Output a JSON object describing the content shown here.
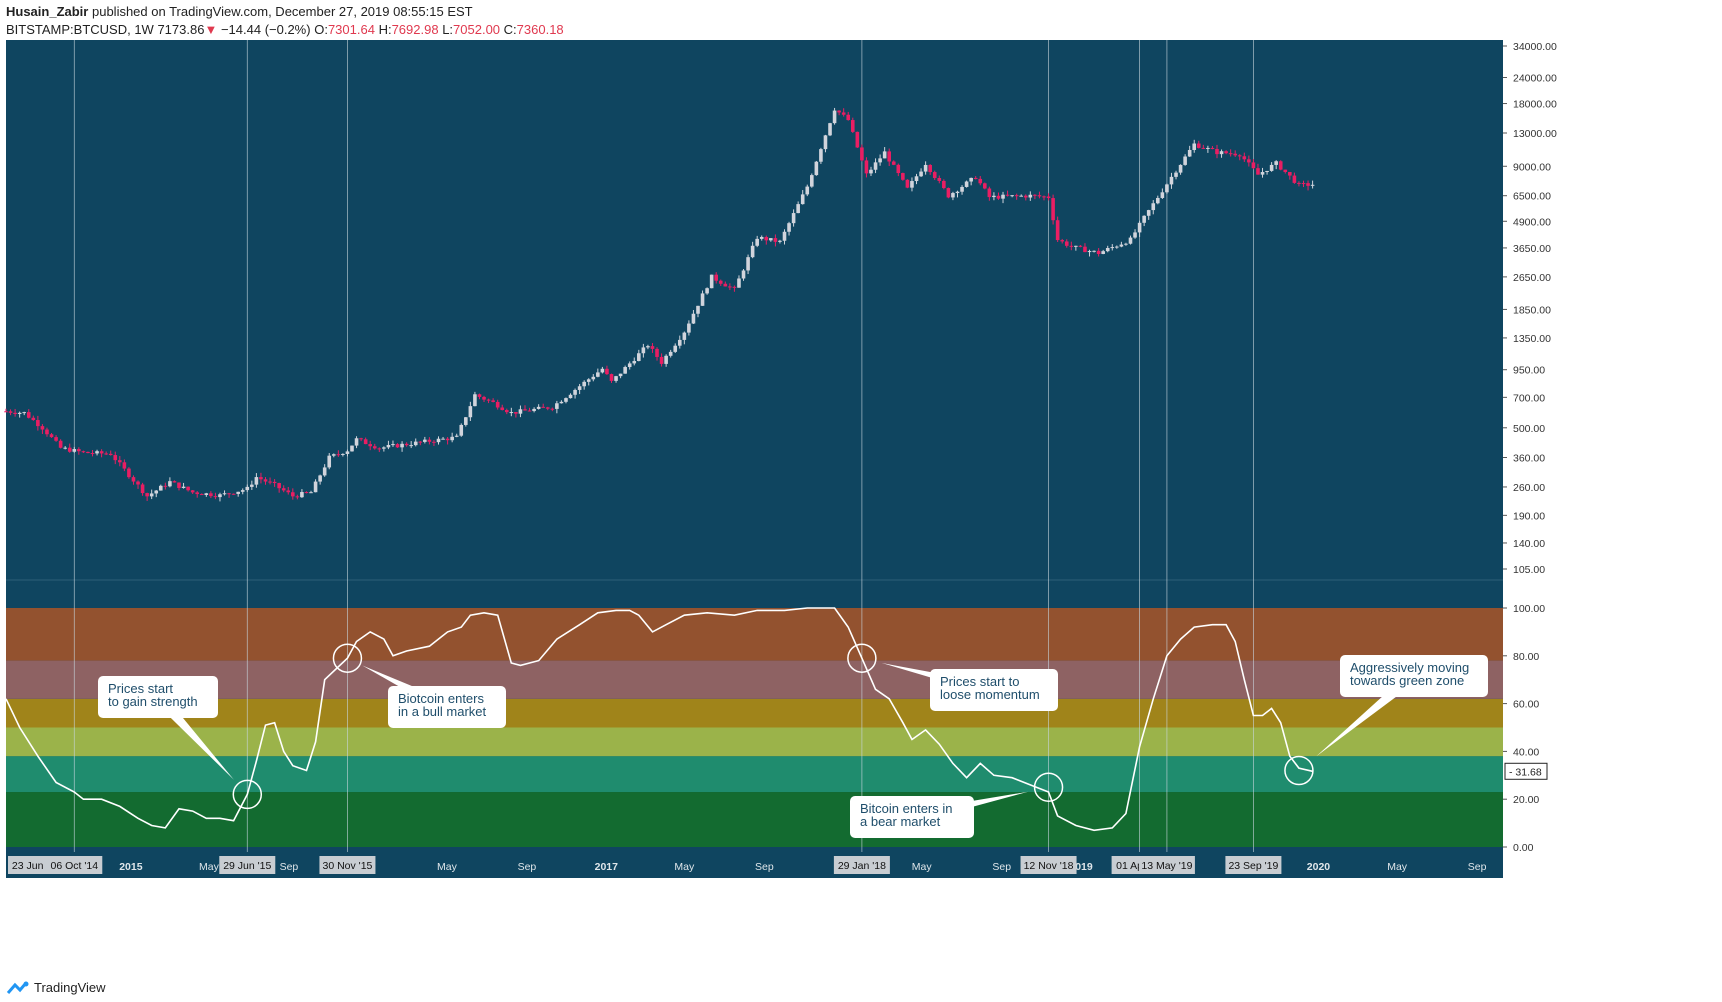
{
  "header": {
    "author": "Husain_Zabir",
    "published": "published on TradingView.com, December 27, 2019 08:55:15 EST",
    "symbol": "BITSTAMP:BTCUSD, 1W",
    "last": "7173.86",
    "change_arrow": "▼",
    "change": "−14.44 (−0.2%)",
    "o_label": "O:",
    "o_value": "7301.64",
    "h_label": "H:",
    "h_value": "7692.98",
    "l_label": "L:",
    "l_value": "7052.00",
    "c_label": "C:",
    "c_value": "7360.18"
  },
  "footer": {
    "brand": "TradingView"
  },
  "colors": {
    "background": "#0f4560",
    "up": "#d1d4dc",
    "down": "#e91e63",
    "line": "#ffffff",
    "zones": [
      "#136b30",
      "#1f8c6e",
      "#9bb34a",
      "#a0841a",
      "#8e6263",
      "#93522f"
    ]
  },
  "chart_data": [
    {
      "type": "candlestick",
      "scale": "log",
      "y_ticks": [
        "105.00",
        "140.00",
        "190.00",
        "260.00",
        "360.00",
        "500.00",
        "700.00",
        "950.00",
        "1350.00",
        "1850.00",
        "2650.00",
        "3650.00",
        "4900.00",
        "6500.00",
        "9000.00",
        "13000.00",
        "18000.00",
        "24000.00",
        "34000.00"
      ],
      "ohlc_anchors": [
        {
          "t": "2014-06-23",
          "v": 600
        },
        {
          "t": "2014-07-21",
          "v": 590
        },
        {
          "t": "2014-08-18",
          "v": 500
        },
        {
          "t": "2014-09-15",
          "v": 400
        },
        {
          "t": "2014-10-20",
          "v": 380
        },
        {
          "t": "2014-12-01",
          "v": 375
        },
        {
          "t": "2015-01-05",
          "v": 280
        },
        {
          "t": "2015-01-26",
          "v": 235
        },
        {
          "t": "2015-03-02",
          "v": 275
        },
        {
          "t": "2015-04-06",
          "v": 245
        },
        {
          "t": "2015-05-18",
          "v": 237
        },
        {
          "t": "2015-06-29",
          "v": 255
        },
        {
          "t": "2015-07-13",
          "v": 290
        },
        {
          "t": "2015-08-10",
          "v": 265
        },
        {
          "t": "2015-09-07",
          "v": 235
        },
        {
          "t": "2015-10-05",
          "v": 245
        },
        {
          "t": "2015-11-02",
          "v": 360
        },
        {
          "t": "2015-11-30",
          "v": 390
        },
        {
          "t": "2015-12-14",
          "v": 440
        },
        {
          "t": "2016-01-18",
          "v": 400
        },
        {
          "t": "2016-03-07",
          "v": 420
        },
        {
          "t": "2016-05-16",
          "v": 450
        },
        {
          "t": "2016-06-13",
          "v": 720
        },
        {
          "t": "2016-07-11",
          "v": 660
        },
        {
          "t": "2016-08-08",
          "v": 590
        },
        {
          "t": "2016-10-10",
          "v": 630
        },
        {
          "t": "2016-12-26",
          "v": 960
        },
        {
          "t": "2017-01-09",
          "v": 830
        },
        {
          "t": "2017-03-06",
          "v": 1250
        },
        {
          "t": "2017-03-27",
          "v": 1030
        },
        {
          "t": "2017-05-01",
          "v": 1450
        },
        {
          "t": "2017-06-12",
          "v": 2650
        },
        {
          "t": "2017-07-17",
          "v": 2300
        },
        {
          "t": "2017-08-21",
          "v": 4100
        },
        {
          "t": "2017-09-25",
          "v": 3900
        },
        {
          "t": "2017-11-06",
          "v": 7200
        },
        {
          "t": "2017-12-18",
          "v": 17000
        },
        {
          "t": "2018-01-08",
          "v": 15000
        },
        {
          "t": "2018-02-05",
          "v": 8200
        },
        {
          "t": "2018-03-05",
          "v": 10500
        },
        {
          "t": "2018-04-09",
          "v": 7000
        },
        {
          "t": "2018-05-07",
          "v": 9300
        },
        {
          "t": "2018-06-11",
          "v": 6500
        },
        {
          "t": "2018-07-23",
          "v": 8000
        },
        {
          "t": "2018-08-13",
          "v": 6400
        },
        {
          "t": "2018-10-15",
          "v": 6500
        },
        {
          "t": "2018-11-12",
          "v": 6400
        },
        {
          "t": "2018-11-26",
          "v": 4000
        },
        {
          "t": "2018-12-17",
          "v": 3700
        },
        {
          "t": "2019-01-28",
          "v": 3450
        },
        {
          "t": "2019-03-18",
          "v": 4000
        },
        {
          "t": "2019-04-08",
          "v": 5100
        },
        {
          "t": "2019-05-20",
          "v": 8000
        },
        {
          "t": "2019-06-24",
          "v": 11500
        },
        {
          "t": "2019-07-29",
          "v": 10500
        },
        {
          "t": "2019-09-02",
          "v": 10300
        },
        {
          "t": "2019-09-30",
          "v": 8200
        },
        {
          "t": "2019-10-28",
          "v": 9300
        },
        {
          "t": "2019-12-02",
          "v": 7300
        },
        {
          "t": "2019-12-23",
          "v": 7360
        }
      ]
    },
    {
      "type": "line",
      "ylim": [
        0,
        100
      ],
      "y_ticks": [
        "0.00",
        "20.00",
        "40.00",
        "60.00",
        "80.00",
        "100.00"
      ],
      "zones": [
        [
          0,
          23
        ],
        [
          23,
          38
        ],
        [
          38,
          50
        ],
        [
          50,
          62
        ],
        [
          62,
          78
        ],
        [
          78,
          100
        ]
      ],
      "last_value_label": "31.68",
      "points": [
        {
          "t": "2014-06-23",
          "v": 62
        },
        {
          "t": "2014-07-14",
          "v": 50
        },
        {
          "t": "2014-08-11",
          "v": 38
        },
        {
          "t": "2014-09-08",
          "v": 27
        },
        {
          "t": "2014-10-06",
          "v": 23
        },
        {
          "t": "2014-10-20",
          "v": 20
        },
        {
          "t": "2014-11-17",
          "v": 20
        },
        {
          "t": "2014-12-15",
          "v": 17
        },
        {
          "t": "2015-01-12",
          "v": 12
        },
        {
          "t": "2015-02-02",
          "v": 9
        },
        {
          "t": "2015-02-23",
          "v": 8
        },
        {
          "t": "2015-03-16",
          "v": 16
        },
        {
          "t": "2015-04-06",
          "v": 15
        },
        {
          "t": "2015-04-27",
          "v": 12
        },
        {
          "t": "2015-05-18",
          "v": 12
        },
        {
          "t": "2015-06-08",
          "v": 11
        },
        {
          "t": "2015-06-29",
          "v": 22
        },
        {
          "t": "2015-07-13",
          "v": 36
        },
        {
          "t": "2015-07-27",
          "v": 51
        },
        {
          "t": "2015-08-10",
          "v": 52
        },
        {
          "t": "2015-08-24",
          "v": 40
        },
        {
          "t": "2015-09-07",
          "v": 34
        },
        {
          "t": "2015-09-28",
          "v": 32
        },
        {
          "t": "2015-10-12",
          "v": 44
        },
        {
          "t": "2015-10-26",
          "v": 70
        },
        {
          "t": "2015-11-30",
          "v": 79
        },
        {
          "t": "2015-12-14",
          "v": 86
        },
        {
          "t": "2016-01-04",
          "v": 90
        },
        {
          "t": "2016-01-25",
          "v": 87
        },
        {
          "t": "2016-02-08",
          "v": 80
        },
        {
          "t": "2016-02-29",
          "v": 82
        },
        {
          "t": "2016-04-04",
          "v": 84
        },
        {
          "t": "2016-05-02",
          "v": 90
        },
        {
          "t": "2016-05-23",
          "v": 92
        },
        {
          "t": "2016-06-06",
          "v": 97
        },
        {
          "t": "2016-06-27",
          "v": 98
        },
        {
          "t": "2016-07-18",
          "v": 97
        },
        {
          "t": "2016-08-08",
          "v": 77
        },
        {
          "t": "2016-08-22",
          "v": 76
        },
        {
          "t": "2016-09-19",
          "v": 78
        },
        {
          "t": "2016-10-17",
          "v": 87
        },
        {
          "t": "2016-11-21",
          "v": 93
        },
        {
          "t": "2016-12-19",
          "v": 98
        },
        {
          "t": "2017-01-16",
          "v": 99
        },
        {
          "t": "2017-02-06",
          "v": 99
        },
        {
          "t": "2017-02-20",
          "v": 97
        },
        {
          "t": "2017-03-13",
          "v": 90
        },
        {
          "t": "2017-04-03",
          "v": 93
        },
        {
          "t": "2017-05-01",
          "v": 97
        },
        {
          "t": "2017-06-05",
          "v": 98
        },
        {
          "t": "2017-07-17",
          "v": 97
        },
        {
          "t": "2017-08-21",
          "v": 99
        },
        {
          "t": "2017-10-02",
          "v": 99
        },
        {
          "t": "2017-11-06",
          "v": 100
        },
        {
          "t": "2017-12-18",
          "v": 100
        },
        {
          "t": "2018-01-08",
          "v": 92
        },
        {
          "t": "2018-01-29",
          "v": 79
        },
        {
          "t": "2018-02-19",
          "v": 66
        },
        {
          "t": "2018-03-12",
          "v": 62
        },
        {
          "t": "2018-04-02",
          "v": 52
        },
        {
          "t": "2018-04-16",
          "v": 45
        },
        {
          "t": "2018-05-07",
          "v": 49
        },
        {
          "t": "2018-05-28",
          "v": 43
        },
        {
          "t": "2018-06-18",
          "v": 35
        },
        {
          "t": "2018-07-09",
          "v": 29
        },
        {
          "t": "2018-07-30",
          "v": 35
        },
        {
          "t": "2018-08-20",
          "v": 30
        },
        {
          "t": "2018-09-17",
          "v": 29
        },
        {
          "t": "2018-10-15",
          "v": 26
        },
        {
          "t": "2018-11-12",
          "v": 23
        },
        {
          "t": "2018-11-26",
          "v": 13
        },
        {
          "t": "2018-12-24",
          "v": 9
        },
        {
          "t": "2019-01-21",
          "v": 7
        },
        {
          "t": "2019-02-18",
          "v": 8
        },
        {
          "t": "2019-03-11",
          "v": 14
        },
        {
          "t": "2019-04-01",
          "v": 42
        },
        {
          "t": "2019-04-22",
          "v": 62
        },
        {
          "t": "2019-05-13",
          "v": 80
        },
        {
          "t": "2019-06-03",
          "v": 87
        },
        {
          "t": "2019-06-24",
          "v": 92
        },
        {
          "t": "2019-07-22",
          "v": 93
        },
        {
          "t": "2019-08-12",
          "v": 93
        },
        {
          "t": "2019-08-26",
          "v": 86
        },
        {
          "t": "2019-09-09",
          "v": 70
        },
        {
          "t": "2019-09-23",
          "v": 55
        },
        {
          "t": "2019-10-07",
          "v": 55
        },
        {
          "t": "2019-10-21",
          "v": 58
        },
        {
          "t": "2019-11-04",
          "v": 52
        },
        {
          "t": "2019-11-18",
          "v": 38
        },
        {
          "t": "2019-12-02",
          "v": 33
        },
        {
          "t": "2019-12-23",
          "v": 31.68
        }
      ],
      "annotations": [
        {
          "text": [
            "Prices start",
            "to gain strength"
          ],
          "t": "2015-06-29",
          "v": 22
        },
        {
          "text": [
            "Biotcoin enters",
            "in a bull market"
          ],
          "t": "2015-11-30",
          "v": 79
        },
        {
          "text": [
            "Prices start to",
            "loose momentum"
          ],
          "t": "2018-01-29",
          "v": 79
        },
        {
          "text": [
            "Bitcoin enters in",
            "a bear market"
          ],
          "t": "2018-11-12",
          "v": 25
        },
        {
          "text": [
            "Aggressively moving",
            "towards green zone"
          ],
          "t": "2019-12-02",
          "v": 32
        }
      ]
    }
  ],
  "x_axis": {
    "labels": [
      {
        "t": "2015-01-01",
        "text": "2015",
        "bold": true
      },
      {
        "t": "2015-05-01",
        "text": "May"
      },
      {
        "t": "2015-09-01",
        "text": "Sep"
      },
      {
        "t": "2016-05-01",
        "text": "May"
      },
      {
        "t": "2016-09-01",
        "text": "Sep"
      },
      {
        "t": "2017-01-01",
        "text": "2017",
        "bold": true
      },
      {
        "t": "2017-05-01",
        "text": "May"
      },
      {
        "t": "2017-09-01",
        "text": "Sep"
      },
      {
        "t": "2018-05-01",
        "text": "May"
      },
      {
        "t": "2018-09-01",
        "text": "Sep"
      },
      {
        "t": "2019-01-01",
        "text": "2019",
        "bold": true
      },
      {
        "t": "2020-01-01",
        "text": "2020",
        "bold": true
      },
      {
        "t": "2020-05-01",
        "text": "May"
      },
      {
        "t": "2020-09-01",
        "text": "Sep"
      }
    ],
    "markers": [
      {
        "t": "2014-06-23",
        "text": "23 Jun '14",
        "line": false
      },
      {
        "t": "2014-10-06",
        "text": "06 Oct '14",
        "line": true
      },
      {
        "t": "2015-06-29",
        "text": "29 Jun '15",
        "line": true
      },
      {
        "t": "2015-11-30",
        "text": "30 Nov '15",
        "line": true
      },
      {
        "t": "2018-01-29",
        "text": "29 Jan '18",
        "line": true
      },
      {
        "t": "2018-11-12",
        "text": "12 Nov '18",
        "line": true
      },
      {
        "t": "2019-04-01",
        "text": "01 Apr '19",
        "line": true
      },
      {
        "t": "2019-05-13",
        "text": "13 May '19",
        "line": true
      },
      {
        "t": "2019-09-23",
        "text": "23 Sep '19",
        "line": true
      }
    ]
  }
}
